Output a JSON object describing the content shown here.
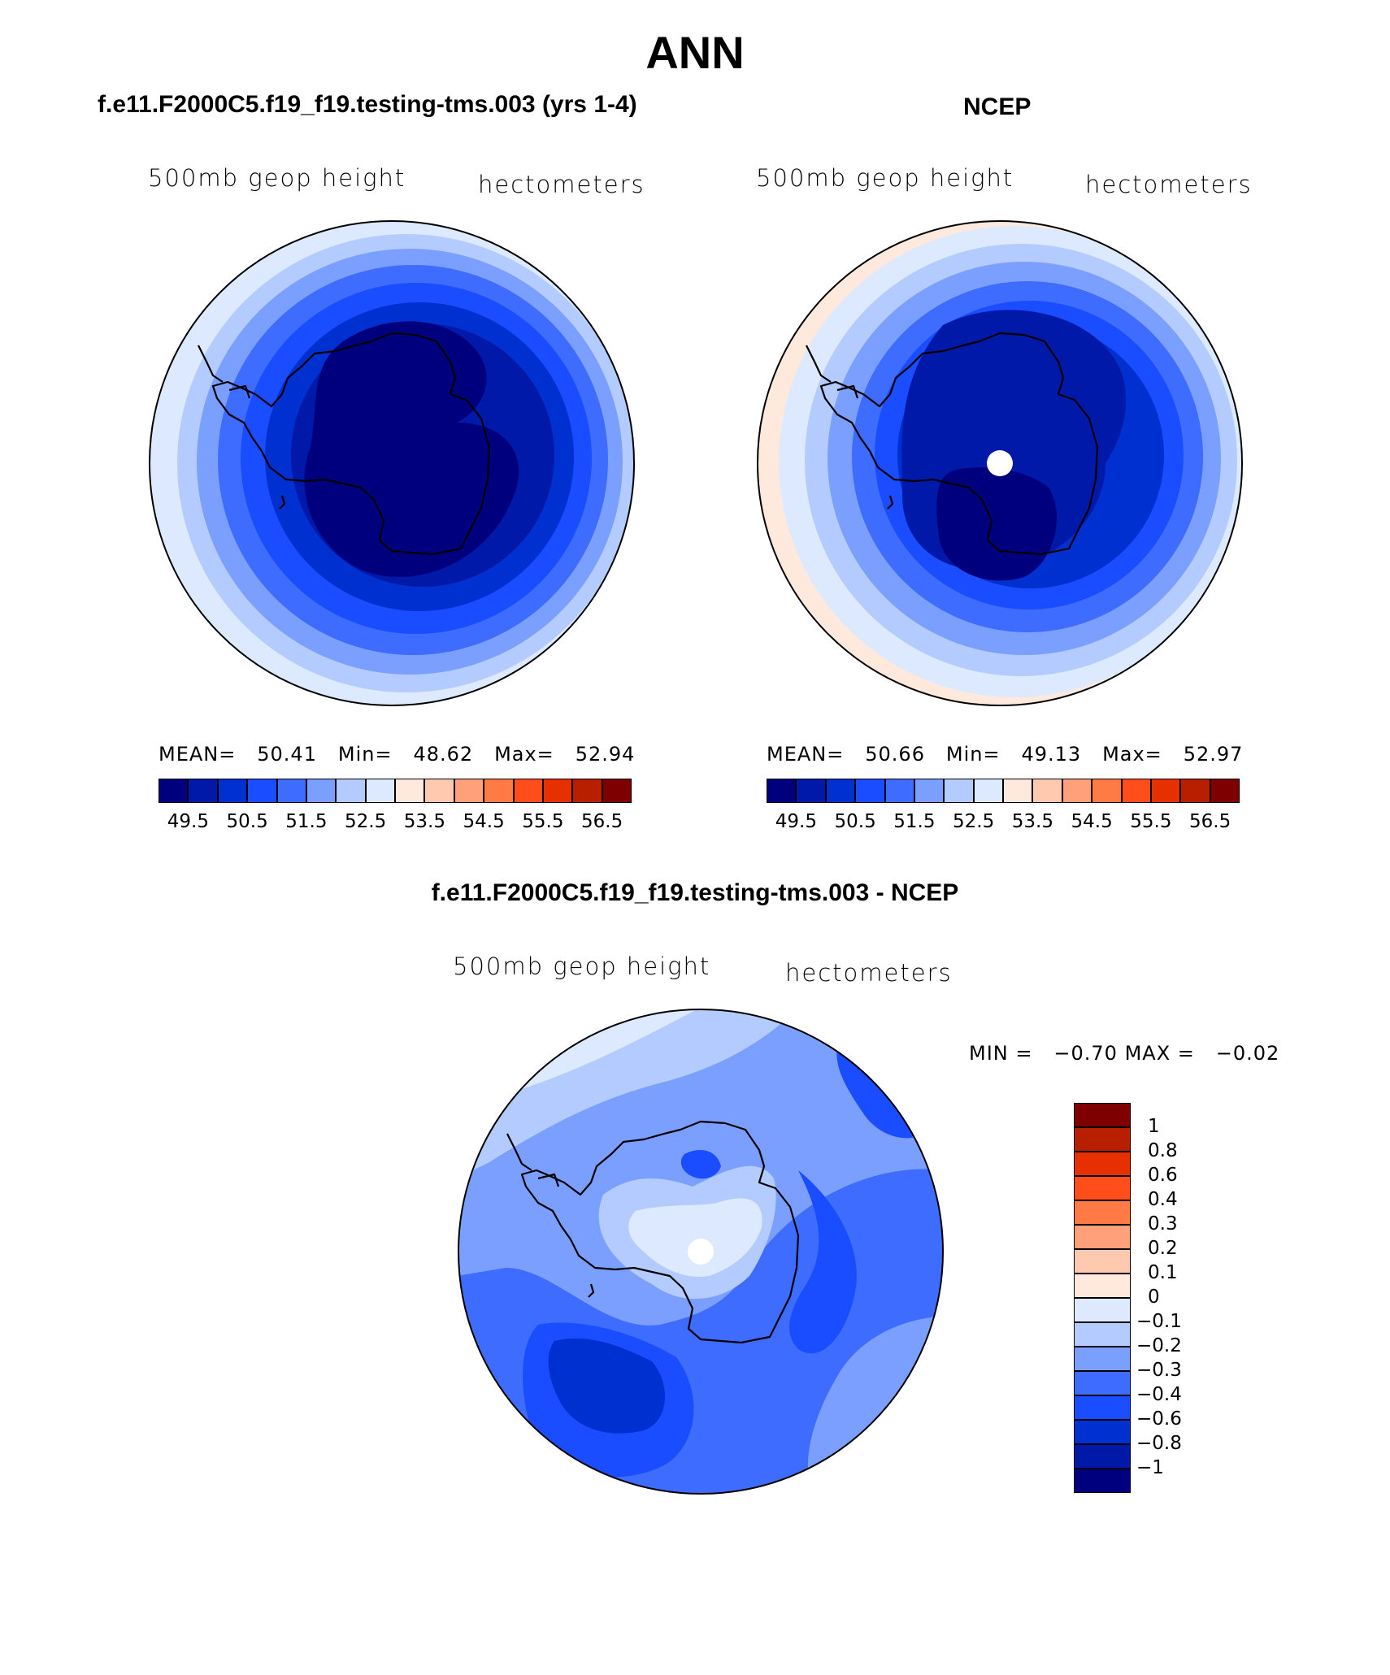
{
  "title": "ANN",
  "panels": {
    "model": {
      "title": "f.e11.F2000C5.f19_f19.testing-tms.003 (yrs 1-4)",
      "left_label": "500mb  geop  height",
      "right_label": "hectometers",
      "stats": {
        "mean_label": "MEAN=",
        "mean": "50.41",
        "min_label": "Min=",
        "min": "48.62",
        "max_label": "Max=",
        "max": "52.94"
      }
    },
    "obs": {
      "title": "NCEP",
      "left_label": "500mb  geop  height",
      "right_label": "hectometers",
      "stats": {
        "mean_label": "MEAN=",
        "mean": "50.66",
        "min_label": "Min=",
        "min": "49.13",
        "max_label": "Max=",
        "max": "52.97"
      }
    },
    "diff": {
      "title": "f.e11.F2000C5.f19_f19.testing-tms.003 - NCEP",
      "left_label": "500mb  geop  height",
      "right_label": "hectometers",
      "stats": {
        "min_label": "MIN =",
        "min": "−0.70",
        "max_label": "MAX =",
        "max": "−0.02"
      }
    }
  },
  "colorbar_main": {
    "colors": [
      "#00007f",
      "#0019a8",
      "#0030d0",
      "#1a4dff",
      "#3d6cff",
      "#7a9fff",
      "#b3cbff",
      "#dde9ff",
      "#ffe8dc",
      "#ffc9b0",
      "#ffa07a",
      "#ff7a45",
      "#ff4e1a",
      "#e63000",
      "#b81f00",
      "#7f0000"
    ],
    "labels": [
      "49.5",
      "50.5",
      "51.5",
      "52.5",
      "53.5",
      "54.5",
      "55.5",
      "56.5"
    ]
  },
  "colorbar_diff": {
    "colors": [
      "#00007f",
      "#0019a8",
      "#0030d0",
      "#1a4dff",
      "#3d6cff",
      "#7a9fff",
      "#b3cbff",
      "#dde9ff",
      "#ffe8dc",
      "#ffc9b0",
      "#ffa07a",
      "#ff7a45",
      "#ff4e1a",
      "#e63000",
      "#b81f00",
      "#7f0000"
    ],
    "labels": [
      "1",
      "0.8",
      "0.6",
      "0.4",
      "0.3",
      "0.2",
      "0.1",
      "0",
      "−0.1",
      "−0.2",
      "−0.3",
      "−0.4",
      "−0.6",
      "−0.8",
      "−1"
    ]
  },
  "map_colors": {
    "model_rings": [
      "#dde9ff",
      "#b3cbff",
      "#7a9fff",
      "#3d6cff",
      "#1a4dff",
      "#0030d0",
      "#0019a8"
    ],
    "model_core": "#00007f",
    "obs_rings": [
      "#ffe8dc",
      "#dde9ff",
      "#b3cbff",
      "#7a9fff",
      "#3d6cff",
      "#1a4dff",
      "#0030d0"
    ],
    "obs_core": "#0019a8",
    "obs_inner": "#00007f",
    "diff_base": "#3d6cff"
  }
}
